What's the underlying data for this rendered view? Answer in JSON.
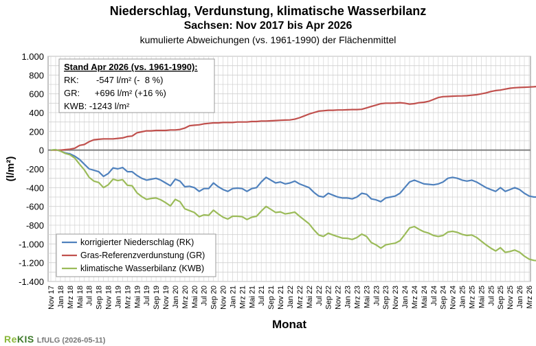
{
  "title": "Niederschlag, Verdunstung, klimatische Wasserbilanz",
  "subtitle": "Sachsen: Nov 2017 bis Apr 2026",
  "subtitle2": "kumulierte Abweichungen (vs. 1961-1990) der Flächenmittel",
  "footer": {
    "logo_a": "Re",
    "logo_b": "KIS",
    "org": "LfULG (2026-05-11)"
  },
  "infobox": {
    "heading": "Stand Apr 2026 (vs. 1961-1990):",
    "line_rk": "RK:       -547 l/m² (-  8 %)",
    "line_gr": "GR:      +696 l/m² (+16 %)",
    "line_kwb": "KWB: -1243 l/m²"
  },
  "chart_data": {
    "type": "line",
    "title": "Niederschlag, Verdunstung, klimatische Wasserbilanz",
    "xlabel": "Monat",
    "ylabel": "(l/m²)",
    "ylim": [
      -1400,
      1000
    ],
    "yticks": [
      -1400,
      -1200,
      -1000,
      -800,
      -600,
      -400,
      -200,
      0,
      200,
      400,
      600,
      800,
      1000
    ],
    "ytick_labels": [
      "-1.400",
      "-1.200",
      "-1.000",
      "-800",
      "-600",
      "-400",
      "-200",
      "0",
      "200",
      "400",
      "600",
      "800",
      "1.000"
    ],
    "xtick_labels": [
      "Nov 17",
      "Jan 18",
      "Mrz 18",
      "Mai 18",
      "Jul 18",
      "Sep 18",
      "Nov 18",
      "Jan 19",
      "Mrz 19",
      "Mai 19",
      "Jul 19",
      "Sep 19",
      "Nov 19",
      "Jan 20",
      "Mrz 20",
      "Mai 20",
      "Jul 20",
      "Sep 20",
      "Nov 20",
      "Jan 21",
      "Mrz 21",
      "Mai 21",
      "Jul 21",
      "Sep 21",
      "Nov 21",
      "Jan 22",
      "Mrz 22",
      "Mai 22",
      "Jul 22",
      "Sep 22",
      "Nov 22",
      "Jan 23",
      "Mrz 23",
      "Mai 23",
      "Jul 23",
      "Sep 23",
      "Nov 23",
      "Jan 24",
      "Mrz 24",
      "Mai 24",
      "Jul 24",
      "Sep 24",
      "Nov 24",
      "Jan 25",
      "Mrz 25",
      "Mai 25",
      "Jul 25",
      "Sep 25",
      "Nov 25",
      "Jan 26",
      "Mrz 26"
    ],
    "grid": true,
    "legend": "bottom-left",
    "series": [
      {
        "name": "korrigierter Niederschlag (RK)",
        "color": "#4f81bd",
        "values": [
          0,
          5,
          -10,
          -30,
          -40,
          -65,
          -100,
          -150,
          -200,
          -215,
          -230,
          -280,
          -250,
          -190,
          -200,
          -185,
          -230,
          -230,
          -270,
          -300,
          -320,
          -310,
          -300,
          -320,
          -350,
          -380,
          -310,
          -330,
          -390,
          -385,
          -400,
          -440,
          -410,
          -410,
          -350,
          -390,
          -420,
          -440,
          -410,
          -405,
          -410,
          -440,
          -410,
          -400,
          -340,
          -290,
          -320,
          -350,
          -340,
          -360,
          -350,
          -330,
          -360,
          -380,
          -400,
          -450,
          -490,
          -500,
          -460,
          -480,
          -500,
          -510,
          -510,
          -520,
          -500,
          -460,
          -470,
          -520,
          -530,
          -550,
          -510,
          -500,
          -490,
          -460,
          -400,
          -340,
          -320,
          -340,
          -360,
          -365,
          -370,
          -360,
          -340,
          -300,
          -290,
          -300,
          -320,
          -330,
          -320,
          -340,
          -370,
          -400,
          -420,
          -440,
          -400,
          -440,
          -420,
          -400,
          -420,
          -460,
          -490,
          -500,
          -500,
          -520,
          -547
        ]
      },
      {
        "name": "Gras-Referenzverdunstung (GR)",
        "color": "#c0504d",
        "values": [
          0,
          0,
          0,
          5,
          10,
          20,
          50,
          60,
          90,
          110,
          115,
          120,
          120,
          120,
          125,
          130,
          145,
          150,
          185,
          195,
          205,
          205,
          210,
          210,
          210,
          215,
          215,
          220,
          235,
          260,
          265,
          270,
          280,
          285,
          290,
          290,
          295,
          295,
          295,
          300,
          300,
          300,
          305,
          305,
          310,
          310,
          312,
          315,
          318,
          320,
          322,
          330,
          345,
          365,
          385,
          400,
          415,
          420,
          425,
          425,
          428,
          428,
          430,
          432,
          432,
          435,
          450,
          465,
          480,
          495,
          500,
          500,
          502,
          505,
          500,
          490,
          495,
          505,
          510,
          520,
          540,
          560,
          570,
          572,
          575,
          577,
          578,
          580,
          585,
          590,
          600,
          610,
          625,
          635,
          640,
          650,
          660,
          665,
          668,
          670,
          672,
          675,
          680,
          690,
          696
        ]
      },
      {
        "name": "klimatische Wasserbilanz (KWB)",
        "color": "#9bbb59",
        "values": [
          0,
          5,
          -10,
          -35,
          -50,
          -85,
          -150,
          -210,
          -290,
          -330,
          -345,
          -400,
          -370,
          -310,
          -325,
          -315,
          -375,
          -380,
          -455,
          -495,
          -525,
          -515,
          -510,
          -530,
          -560,
          -595,
          -525,
          -550,
          -625,
          -645,
          -665,
          -710,
          -690,
          -695,
          -640,
          -680,
          -715,
          -735,
          -705,
          -705,
          -710,
          -740,
          -715,
          -705,
          -650,
          -600,
          -632,
          -665,
          -658,
          -680,
          -672,
          -660,
          -705,
          -745,
          -785,
          -850,
          -905,
          -920,
          -885,
          -905,
          -922,
          -938,
          -940,
          -952,
          -932,
          -895,
          -920,
          -985,
          -1010,
          -1045,
          -1010,
          -1000,
          -992,
          -965,
          -900,
          -830,
          -815,
          -845,
          -870,
          -885,
          -910,
          -920,
          -910,
          -873,
          -865,
          -877,
          -898,
          -910,
          -905,
          -930,
          -970,
          -1010,
          -1045,
          -1075,
          -1040,
          -1090,
          -1080,
          -1065,
          -1088,
          -1130,
          -1162,
          -1175,
          -1180,
          -1210,
          -1243
        ]
      }
    ]
  }
}
